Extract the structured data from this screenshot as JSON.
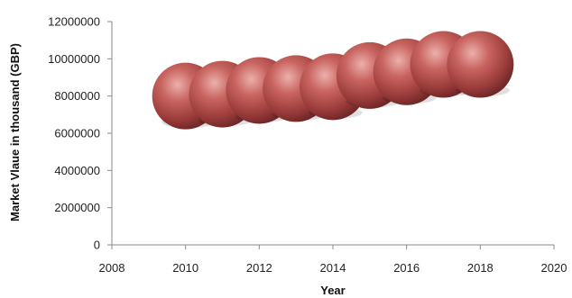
{
  "chart_data": {
    "type": "scatter",
    "title": "",
    "xlabel": "Year",
    "ylabel": "Market Vlaue in thousand (GBP)",
    "xlim": [
      2008,
      2020
    ],
    "ylim": [
      0,
      12000000
    ],
    "x_ticks": [
      "2008",
      "2010",
      "2012",
      "2014",
      "2016",
      "2018",
      "2020"
    ],
    "y_ticks": [
      "0",
      "2000000",
      "4000000",
      "6000000",
      "8000000",
      "10000000",
      "12000000"
    ],
    "grid": "none",
    "legend": "none",
    "marker": "bubble",
    "marker_color": "#b94a4a",
    "series": [
      {
        "x": [
          2010,
          2011,
          2012,
          2013,
          2014,
          2015,
          2016,
          2017,
          2018
        ],
        "y": [
          8000000,
          8100000,
          8300000,
          8400000,
          8500000,
          9100000,
          9300000,
          9700000,
          9700000
        ]
      }
    ]
  }
}
